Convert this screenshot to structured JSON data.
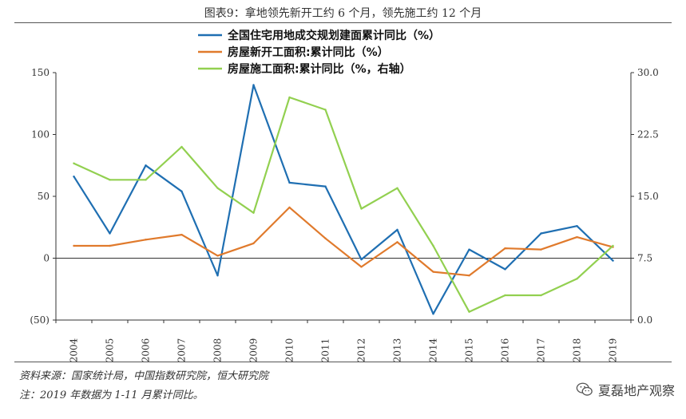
{
  "figure_title": "图表9：拿地领先新开工约 6 个月，领先施工约 12 个月",
  "footer": {
    "source": "资料来源：国家统计局，中国指数研究院，恒大研究院",
    "note": "注：2019 年数据为 1-11 月累计同比。",
    "watermark": "夏磊地产观察",
    "watermark_icon": "wechat-icon"
  },
  "chart_data": {
    "type": "line",
    "categories": [
      "2004",
      "2005",
      "2006",
      "2007",
      "2008",
      "2009",
      "2010",
      "2011",
      "2012",
      "2013",
      "2014",
      "2015",
      "2016",
      "2017",
      "2018",
      "2019"
    ],
    "left_axis": {
      "ylim": [
        -50,
        150
      ],
      "ticks": [
        150,
        100,
        50,
        0,
        -50
      ],
      "tick_labels": [
        "150",
        "100",
        "50",
        "0",
        "(50)"
      ]
    },
    "right_axis": {
      "ylim": [
        0,
        30
      ],
      "ticks": [
        30,
        22.5,
        15,
        7.5,
        0
      ],
      "tick_labels": [
        "30.0",
        "22.5",
        "15.0",
        "7.5",
        "0.0"
      ]
    },
    "grid": false,
    "legend_position": "top-center",
    "series": [
      {
        "name": "全国住宅用地成交规划建面累计同比（%）",
        "axis": "left",
        "color": "#1f6fb2",
        "values": [
          66,
          20,
          75,
          54,
          -14,
          140,
          61,
          58,
          -1,
          23,
          -45,
          7,
          -9,
          20,
          26,
          -2
        ]
      },
      {
        "name": "房屋新开工面积:累计同比（%）",
        "axis": "left",
        "color": "#e07a2c",
        "values": [
          10,
          10,
          15,
          19,
          2,
          12,
          41,
          16,
          -7,
          13,
          -11,
          -14,
          8,
          7,
          17,
          9
        ]
      },
      {
        "name": "房屋施工面积:累计同比（%，右轴）",
        "axis": "right",
        "color": "#92d050",
        "values": [
          19,
          17,
          17,
          21,
          16,
          13,
          27,
          25.5,
          13.5,
          16,
          9,
          1,
          3,
          3,
          5,
          9
        ]
      }
    ]
  }
}
